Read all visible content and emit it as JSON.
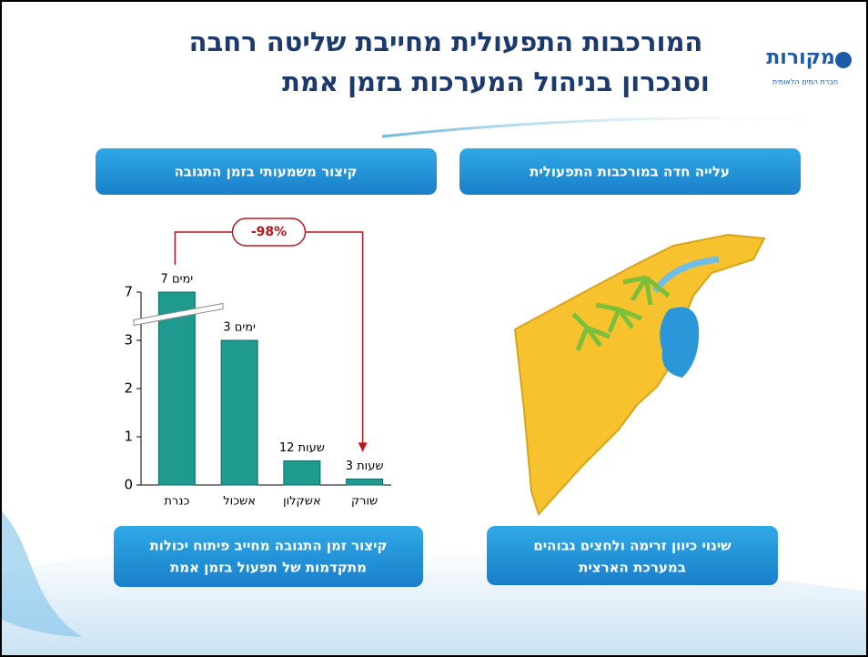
{
  "header": {
    "title": [
      "המורכבות התפעולית מחייבת שליטה רחבה",
      "וסנכרון בניהול המערכות בזמן אמת"
    ],
    "logo": "מקורות",
    "logo_subtitle": "חברת המים הלאומית"
  },
  "right_panel": {
    "heading": "עלייה חדה במורכבות התפעולית",
    "footer": [
      "שינוי כיוון זרימה ולחצים גבוהים",
      "במערכת הארצית"
    ]
  },
  "left_panel": {
    "heading": "קיצור משמעותי בזמן התגובה",
    "footer": [
      "קיצור זמן התגובה מחייב פיתוח יכולות",
      "מתקדמות של תפעול בזמן אמת"
    ]
  },
  "chart_data": {
    "type": "bar",
    "categories": [
      "כנרת",
      "אשכול",
      "אשקלון",
      "שורק"
    ],
    "values": [
      7,
      3,
      0.5,
      0.125
    ],
    "value_labels": [
      "7 ימים",
      "3 ימים",
      "12 שעות",
      "3 שעות"
    ],
    "color": "#1f9a8f",
    "ylim": [
      0,
      7
    ],
    "yticks": [
      0,
      1,
      2,
      3,
      7
    ],
    "axis_break": true,
    "annotation": "-98%",
    "annotation_color": "#c0141c"
  }
}
